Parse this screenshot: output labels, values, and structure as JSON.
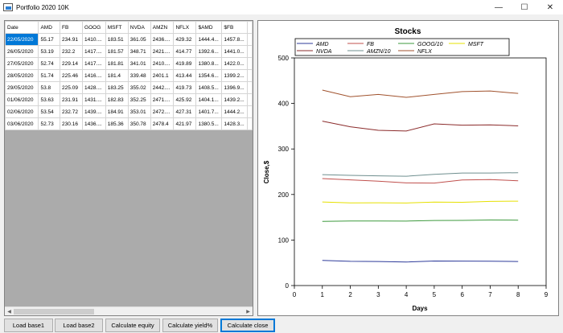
{
  "window": {
    "title": "Portfolio 2020 10K",
    "minimize": "—",
    "maximize": "☐",
    "close": "✕"
  },
  "grid": {
    "headers": [
      "Date",
      "AMD",
      "FB",
      "GOOG",
      "MSFT",
      "NVDA",
      "AMZN",
      "NFLX",
      "$AMD",
      "$FB"
    ],
    "rows": [
      [
        "22/05/2020",
        "55.17",
        "234.91",
        "1410....",
        "183.51",
        "361.05",
        "2436....",
        "429.32",
        "1444.4...",
        "1457.8..."
      ],
      [
        "26/05/2020",
        "53.19",
        "232.2",
        "1417....",
        "181.57",
        "348.71",
        "2421....",
        "414.77",
        "1392.6...",
        "1441.0..."
      ],
      [
        "27/05/2020",
        "52.74",
        "229.14",
        "1417....",
        "181.81",
        "341.01",
        "2410....",
        "419.89",
        "1380.8...",
        "1422.0..."
      ],
      [
        "28/05/2020",
        "51.74",
        "225.46",
        "1416....",
        "181.4",
        "339.48",
        "2401.1",
        "413.44",
        "1354.6...",
        "1399.2..."
      ],
      [
        "29/05/2020",
        "53.8",
        "225.09",
        "1428....",
        "183.25",
        "355.02",
        "2442....",
        "419.73",
        "1408.5...",
        "1396.9..."
      ],
      [
        "01/06/2020",
        "53.63",
        "231.91",
        "1431....",
        "182.83",
        "352.25",
        "2471....",
        "425.92",
        "1404.1...",
        "1439.2..."
      ],
      [
        "02/06/2020",
        "53.54",
        "232.72",
        "1439....",
        "184.91",
        "353.01",
        "2472....",
        "427.31",
        "1401.7...",
        "1444.2..."
      ],
      [
        "03/06/2020",
        "52.73",
        "230.16",
        "1436....",
        "185.36",
        "350.78",
        "2478.4",
        "421.97",
        "1380.5...",
        "1428.3..."
      ]
    ]
  },
  "buttons": {
    "load_base1": "Load base1",
    "load_base2": "Load base2",
    "calc_equity": "Calculate equity",
    "calc_yield": "Calculate yield%",
    "calc_close": "Calculate close"
  },
  "chart_data": {
    "type": "line",
    "title": "Stocks",
    "xlabel": "Days",
    "ylabel": "Close,$",
    "xlim": [
      0,
      9
    ],
    "ylim": [
      0,
      500
    ],
    "xticks": [
      0,
      1,
      2,
      3,
      4,
      5,
      6,
      7,
      8,
      9
    ],
    "yticks": [
      0,
      100,
      200,
      300,
      400,
      500
    ],
    "x": [
      1,
      2,
      3,
      4,
      5,
      6,
      7,
      8
    ],
    "legend_position": "top",
    "series": [
      {
        "name": "AMD",
        "color": "#2e3b9a",
        "values": [
          55.17,
          53.19,
          52.74,
          51.74,
          53.8,
          53.63,
          53.54,
          52.73
        ]
      },
      {
        "name": "FB",
        "color": "#c0504d",
        "values": [
          234.91,
          232.2,
          229.14,
          225.46,
          225.09,
          231.91,
          232.72,
          230.16
        ]
      },
      {
        "name": "GOOG/10",
        "color": "#3e9a3e",
        "values": [
          141.0,
          141.7,
          141.7,
          141.6,
          142.8,
          143.1,
          143.9,
          143.6
        ]
      },
      {
        "name": "MSFT",
        "color": "#e6e000",
        "values": [
          183.51,
          181.57,
          181.81,
          181.4,
          183.25,
          182.83,
          184.91,
          185.36
        ]
      },
      {
        "name": "NVDA",
        "color": "#8b2b2b",
        "values": [
          361.05,
          348.71,
          341.01,
          339.48,
          355.02,
          352.25,
          353.01,
          350.78
        ]
      },
      {
        "name": "AMZN/10",
        "color": "#6f8f8f",
        "values": [
          243.6,
          242.1,
          241.0,
          240.1,
          244.2,
          247.1,
          247.2,
          247.84
        ]
      },
      {
        "name": "NFLX",
        "color": "#a0522d",
        "values": [
          429.32,
          414.77,
          419.89,
          413.44,
          419.73,
          425.92,
          427.31,
          421.97
        ]
      }
    ]
  }
}
